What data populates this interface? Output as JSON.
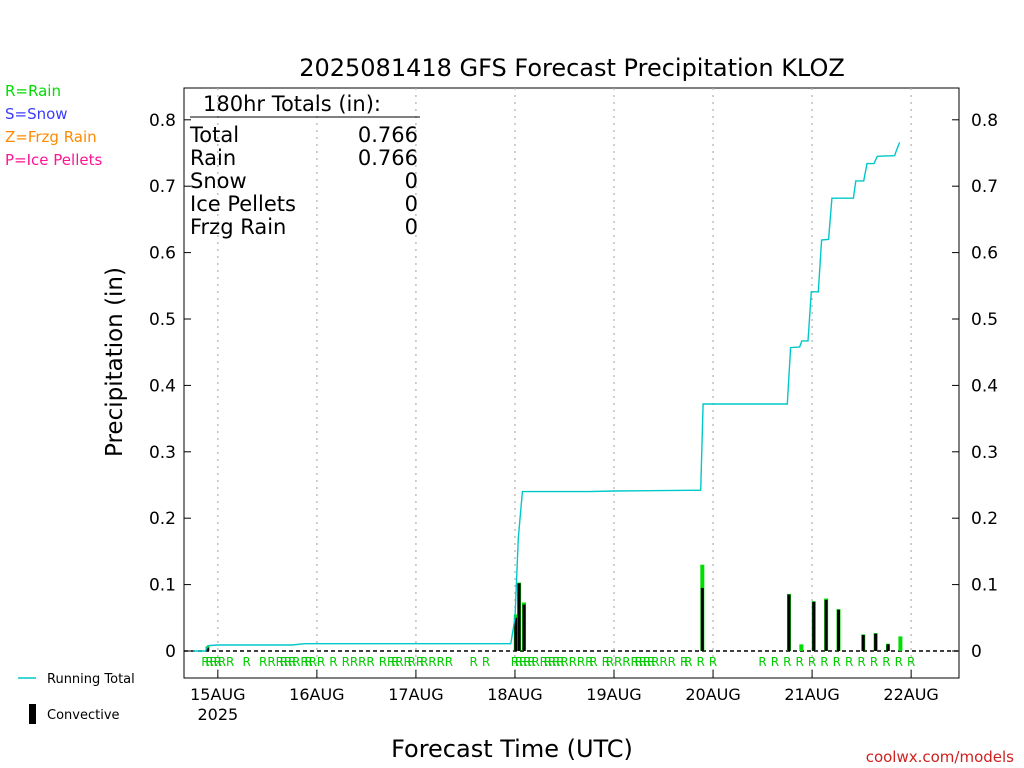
{
  "chart_data": {
    "type": "bar",
    "title": "2025081418 GFS Forecast Precipitation KLOZ",
    "xlabel": "Forecast Time (UTC)",
    "ylabel": "Precipitation (in)",
    "credit": "coolwx.com/models",
    "ylim": [
      0,
      0.85
    ],
    "xlim": [
      -2.2,
      185.6
    ],
    "y_ticks": [
      0,
      0.1,
      0.2,
      0.3,
      0.4,
      0.5,
      0.6,
      0.7,
      0.8
    ],
    "y_tick_labels": [
      "0",
      "0.1",
      "0.2",
      "0.3",
      "0.4",
      "0.5",
      "0.6",
      "0.7",
      "0.8"
    ],
    "grid": "vertical-dotted-at-day-boundaries",
    "x_tick_hours": [
      6,
      30,
      54,
      78,
      102,
      126,
      150,
      174
    ],
    "x_tick_labels": [
      "15AUG",
      "16AUG",
      "17AUG",
      "18AUG",
      "19AUG",
      "20AUG",
      "21AUG",
      "22AUG"
    ],
    "x_year_label": "2025",
    "type_legend": [
      {
        "label": "R=Rain",
        "color": "#00dd00"
      },
      {
        "label": "S=Snow",
        "color": "#3c3cff"
      },
      {
        "label": "Z=Frzg Rain",
        "color": "#ff8a00"
      },
      {
        "label": "P=Ice Pellets",
        "color": "#ff1493"
      }
    ],
    "series_legend": [
      {
        "label": "Running Total",
        "color": "#00c8c8",
        "style": "line"
      },
      {
        "label": "Convective",
        "color": "#000000",
        "style": "bar"
      }
    ],
    "totals_box": {
      "heading": "180hr Totals (in):",
      "rows": [
        {
          "label": "Total",
          "value": "0.766"
        },
        {
          "label": "Rain",
          "value": "0.766"
        },
        {
          "label": "Snow",
          "value": "0"
        },
        {
          "label": "Ice Pellets",
          "value": "0"
        },
        {
          "label": "Frzg Rain",
          "value": "0"
        }
      ]
    },
    "running_total": [
      [
        0,
        0.0
      ],
      [
        3,
        0.0
      ],
      [
        3.6,
        0.008
      ],
      [
        6,
        0.009
      ],
      [
        24,
        0.009
      ],
      [
        27,
        0.011
      ],
      [
        75,
        0.011
      ],
      [
        77,
        0.011
      ],
      [
        78,
        0.05
      ],
      [
        78.8,
        0.17
      ],
      [
        79.8,
        0.24
      ],
      [
        96,
        0.24
      ],
      [
        102,
        0.241
      ],
      [
        120,
        0.242
      ],
      [
        123,
        0.242
      ],
      [
        123.6,
        0.372
      ],
      [
        144,
        0.372
      ],
      [
        144.8,
        0.457
      ],
      [
        147,
        0.458
      ],
      [
        147.5,
        0.467
      ],
      [
        149,
        0.467
      ],
      [
        149.8,
        0.541
      ],
      [
        151.5,
        0.541
      ],
      [
        152.3,
        0.619
      ],
      [
        154,
        0.62
      ],
      [
        154.8,
        0.682
      ],
      [
        160,
        0.682
      ],
      [
        160.6,
        0.708
      ],
      [
        162.5,
        0.708
      ],
      [
        163.3,
        0.734
      ],
      [
        165,
        0.734
      ],
      [
        165.8,
        0.745
      ],
      [
        170,
        0.746
      ],
      [
        170.5,
        0.755
      ],
      [
        171.2,
        0.766
      ]
    ],
    "precip_bars": [
      {
        "hour": 3.5,
        "total": 0.007,
        "convective": 0.005
      },
      {
        "hour": 78.2,
        "total": 0.055,
        "convective": 0.05
      },
      {
        "hour": 79,
        "total": 0.103,
        "convective": 0.102
      },
      {
        "hour": 80.2,
        "total": 0.073,
        "convective": 0.07
      },
      {
        "hour": 123.4,
        "total": 0.13,
        "convective": 0.095
      },
      {
        "hour": 144.4,
        "total": 0.086,
        "convective": 0.085
      },
      {
        "hour": 147.4,
        "total": 0.01,
        "convective": 0.0
      },
      {
        "hour": 150.4,
        "total": 0.075,
        "convective": 0.074
      },
      {
        "hour": 153.4,
        "total": 0.079,
        "convective": 0.077
      },
      {
        "hour": 156.4,
        "total": 0.063,
        "convective": 0.062
      },
      {
        "hour": 162.4,
        "total": 0.025,
        "convective": 0.024
      },
      {
        "hour": 165.4,
        "total": 0.027,
        "convective": 0.026
      },
      {
        "hour": 168.4,
        "total": 0.011,
        "convective": 0.01
      },
      {
        "hour": 171.4,
        "total": 0.022,
        "convective": 0.0
      }
    ],
    "ptype_markers": {
      "label": "R",
      "hours": [
        3,
        4,
        5,
        6,
        7,
        9,
        13,
        17,
        19,
        21,
        22,
        23,
        24,
        25,
        27,
        28,
        29,
        31,
        34,
        37,
        39,
        41,
        43,
        46,
        48,
        49,
        50,
        52,
        53,
        55,
        56,
        58,
        60,
        62,
        68,
        71,
        78,
        79,
        80,
        81,
        82,
        83,
        85,
        86,
        87,
        88,
        89,
        90,
        92,
        94,
        96,
        97,
        100,
        101,
        103,
        105,
        107,
        108,
        109,
        110,
        111,
        112,
        114,
        116,
        119,
        120,
        123,
        126,
        138,
        141,
        144,
        147,
        150,
        153,
        156,
        159,
        162,
        165,
        168,
        171,
        174
      ]
    }
  }
}
